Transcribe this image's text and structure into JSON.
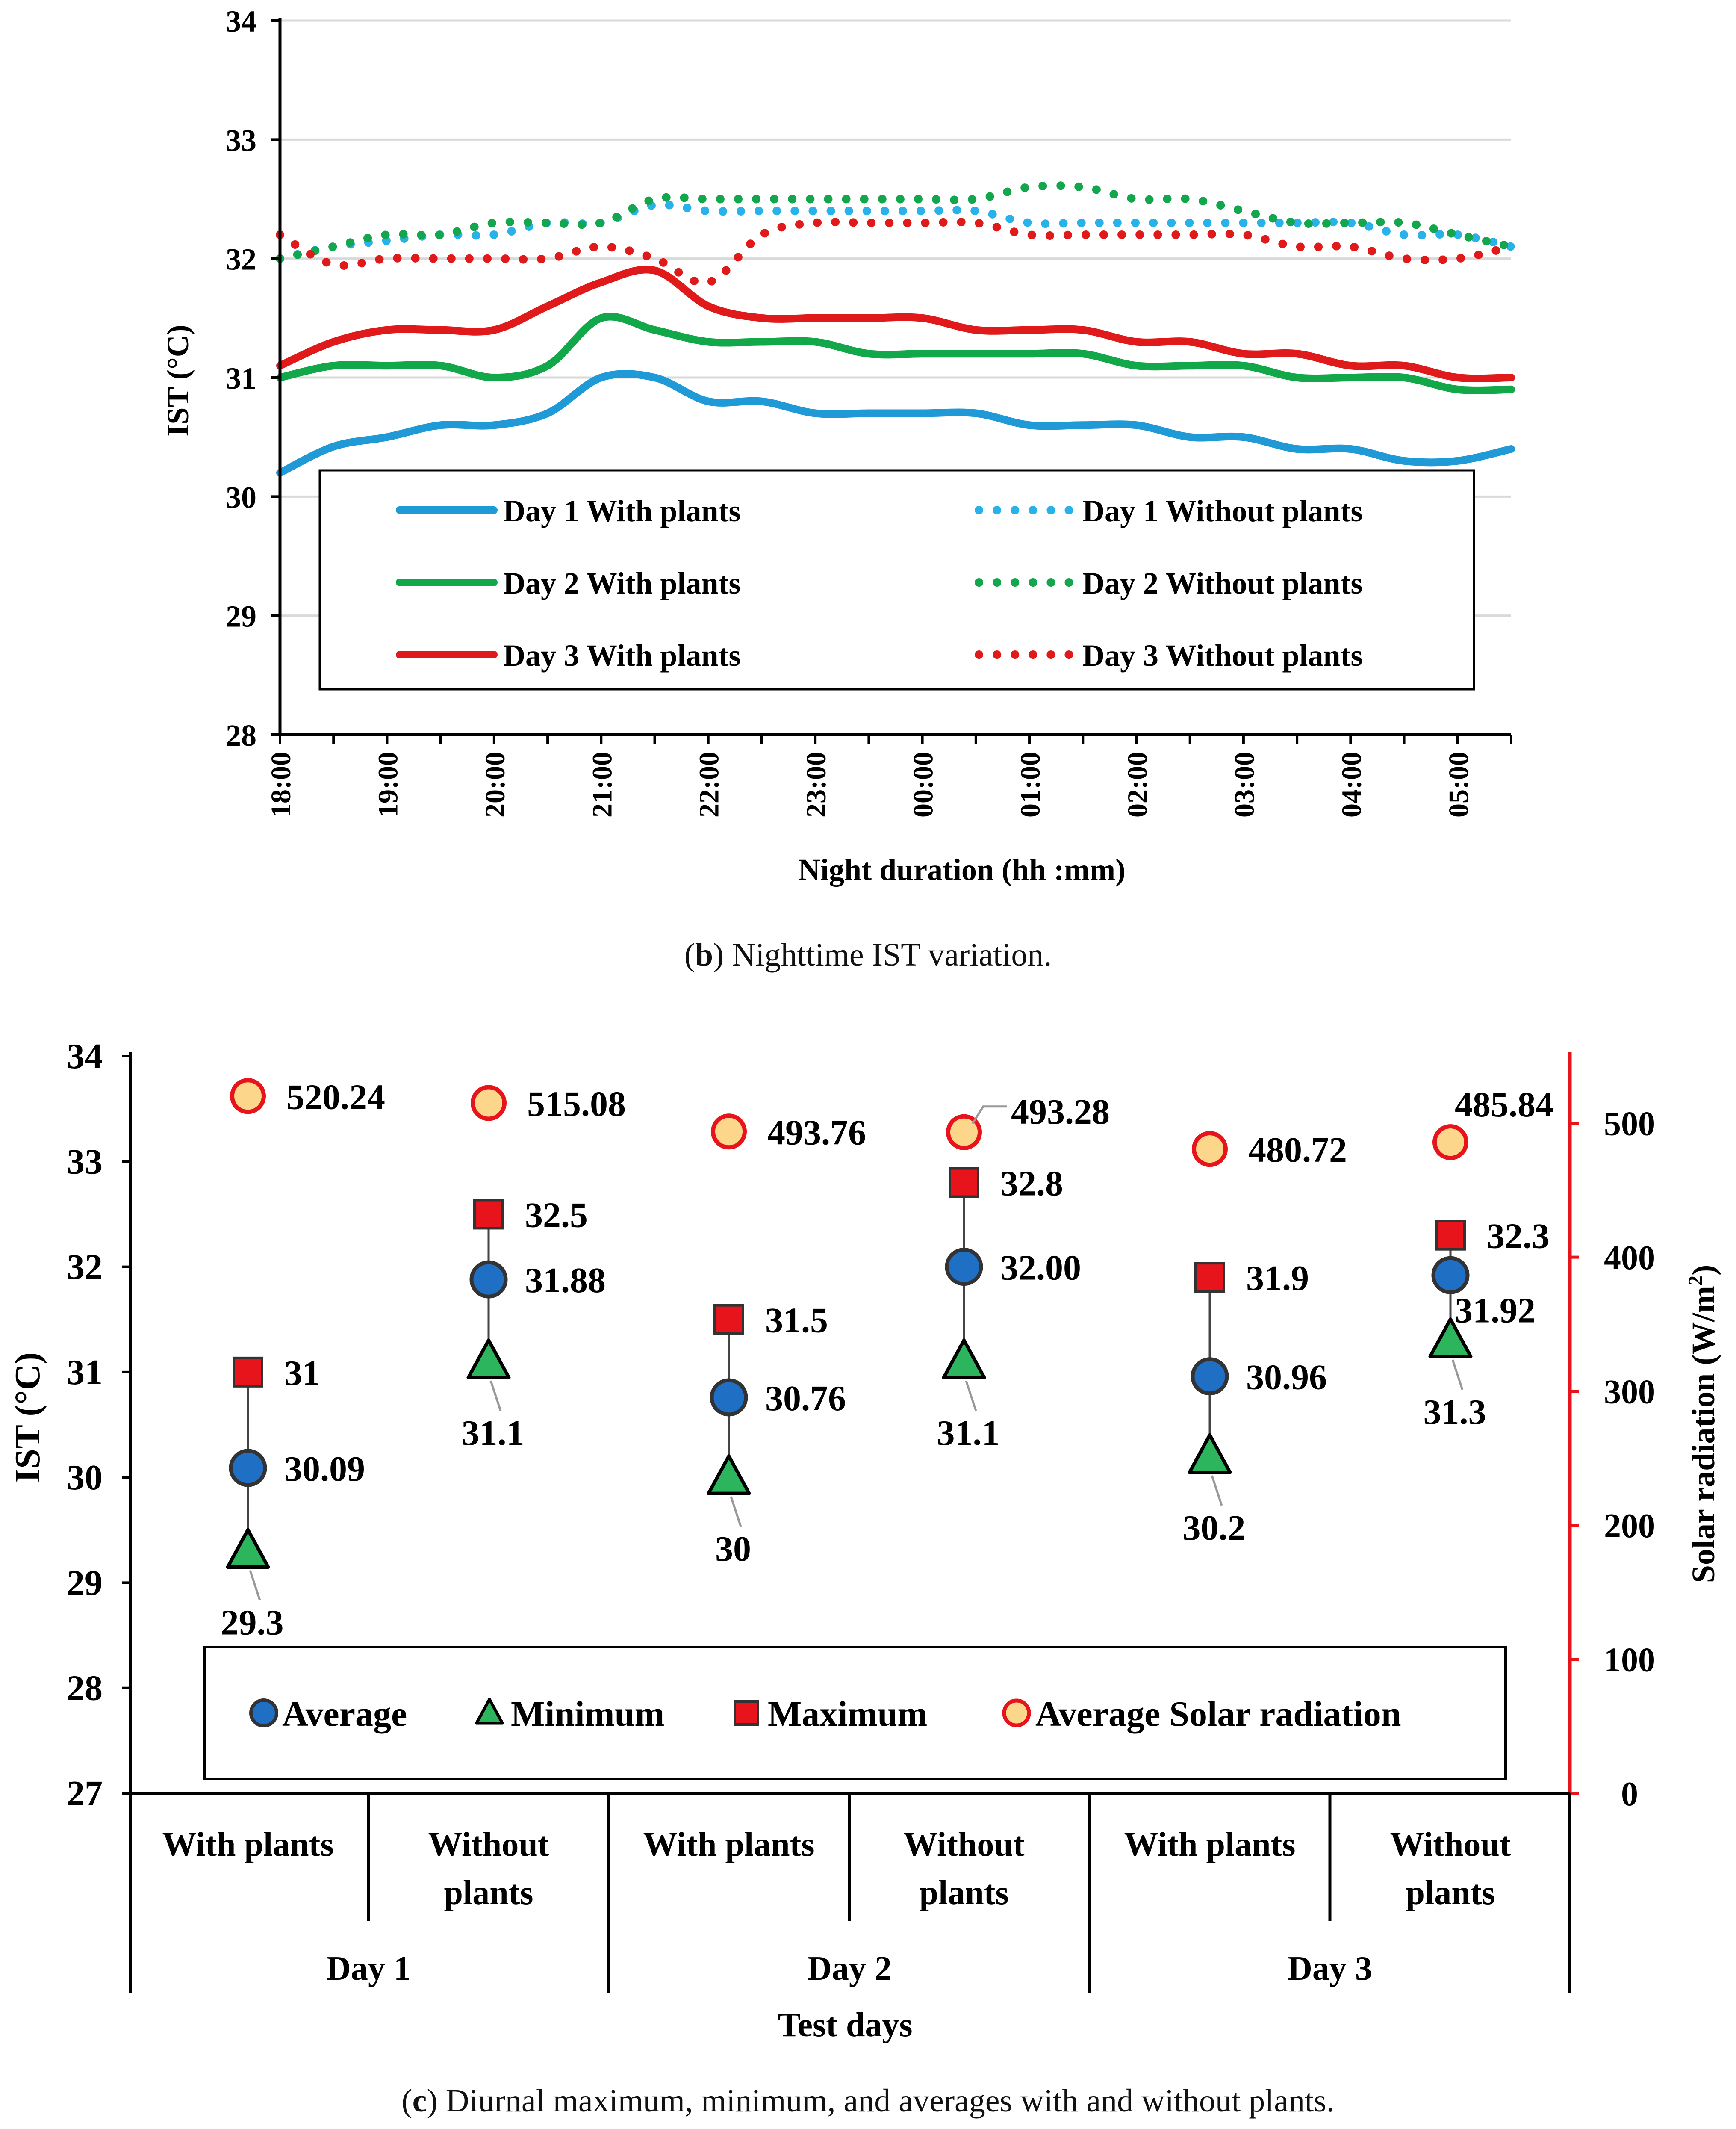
{
  "chart_data": [
    {
      "type": "line",
      "panel": "b",
      "ylabel": "IST (°C)",
      "xlabel": "Night duration (hh :mm)",
      "ylim": [
        28,
        34
      ],
      "yticks": [
        "28",
        "29",
        "30",
        "31",
        "32",
        "33",
        "34"
      ],
      "xticks": [
        "18:00",
        "19:00",
        "20:00",
        "21:00",
        "22:00",
        "23:00",
        "00:00",
        "01:00",
        "02:00",
        "03:00",
        "04:00",
        "05:00"
      ],
      "x_hours_range": [
        0,
        11.5
      ],
      "x_hours": [
        0,
        0.5,
        1,
        1.5,
        2,
        2.5,
        3,
        3.5,
        4,
        4.5,
        5,
        5.5,
        6,
        6.5,
        7,
        7.5,
        8,
        8.5,
        9,
        9.5,
        10,
        10.5,
        11,
        11.5
      ],
      "grid": true,
      "series": [
        {
          "name": "Day 1 With plants",
          "color": "#1f9ad6",
          "style": "solid",
          "values": [
            30.2,
            30.42,
            30.5,
            30.6,
            30.6,
            30.7,
            31.0,
            31.0,
            30.8,
            30.8,
            30.7,
            30.7,
            30.7,
            30.7,
            30.6,
            30.6,
            30.6,
            30.5,
            30.5,
            30.4,
            30.4,
            30.3,
            30.3,
            30.4
          ]
        },
        {
          "name": "Day 2 With plants",
          "color": "#12a84a",
          "style": "solid",
          "values": [
            31.0,
            31.1,
            31.1,
            31.1,
            31.0,
            31.1,
            31.5,
            31.4,
            31.3,
            31.3,
            31.3,
            31.2,
            31.2,
            31.2,
            31.2,
            31.2,
            31.1,
            31.1,
            31.1,
            31.0,
            31.0,
            31.0,
            30.9,
            30.9
          ]
        },
        {
          "name": "Day 3 With plants",
          "color": "#e01a1a",
          "style": "solid",
          "values": [
            31.1,
            31.3,
            31.4,
            31.4,
            31.4,
            31.6,
            31.8,
            31.9,
            31.6,
            31.5,
            31.5,
            31.5,
            31.5,
            31.4,
            31.4,
            31.4,
            31.3,
            31.3,
            31.2,
            31.2,
            31.1,
            31.1,
            31.0,
            31.0
          ]
        },
        {
          "name": "Day 1 Without plants",
          "color": "#29b1ea",
          "style": "dotted",
          "values": [
            32.0,
            32.1,
            32.15,
            32.2,
            32.2,
            32.3,
            32.3,
            32.45,
            32.4,
            32.4,
            32.4,
            32.4,
            32.4,
            32.4,
            32.3,
            32.3,
            32.3,
            32.3,
            32.3,
            32.3,
            32.3,
            32.2,
            32.2,
            32.1
          ]
        },
        {
          "name": "Day 2 Without plants",
          "color": "#14a64c",
          "style": "dotted",
          "values": [
            32.0,
            32.1,
            32.2,
            32.2,
            32.3,
            32.3,
            32.3,
            32.5,
            32.5,
            32.5,
            32.5,
            32.5,
            32.5,
            32.5,
            32.6,
            32.6,
            32.5,
            32.5,
            32.4,
            32.3,
            32.3,
            32.3,
            32.2,
            32.1
          ]
        },
        {
          "name": "Day 3 Without plants",
          "color": "#e01a1a",
          "style": "dotted",
          "values": [
            32.2,
            31.95,
            32.0,
            32.0,
            32.0,
            32.0,
            32.1,
            32.0,
            31.8,
            32.2,
            32.3,
            32.3,
            32.3,
            32.3,
            32.2,
            32.2,
            32.2,
            32.2,
            32.2,
            32.1,
            32.1,
            32.0,
            32.0,
            32.1
          ]
        }
      ],
      "legend": {
        "position": "lower-center",
        "entries": [
          "Day 1 With plants",
          "Day 1 Without plants",
          "Day 2 With plants",
          "Day 2 Without plants",
          "Day 3 With plants",
          "Day 3 Without plants"
        ]
      }
    },
    {
      "type": "scatter",
      "panel": "c",
      "ylabel": "IST (°C)",
      "ylabel_right": "Solar radiation (W/m²)",
      "ylabel_right_base": "Solar radiation (W/m",
      "ylabel_right_sup": "2",
      "ylabel_right_tail": ")",
      "xlabel": "Test days",
      "ylim": [
        27,
        34
      ],
      "yticks": [
        "27",
        "28",
        "29",
        "30",
        "31",
        "32",
        "33",
        "34"
      ],
      "ylim_right": [
        0,
        550
      ],
      "yticks_right": [
        "0",
        "100",
        "200",
        "300",
        "400",
        "500"
      ],
      "categories": [
        "With plants",
        "Without plants",
        "With plants",
        "Without plants",
        "With plants",
        "Without plants"
      ],
      "category_lines": [
        [
          "With plants"
        ],
        [
          "Without",
          "plants"
        ],
        [
          "With plants"
        ],
        [
          "Without",
          "plants"
        ],
        [
          "With plants"
        ],
        [
          "Without",
          "plants"
        ]
      ],
      "groups": [
        "Day 1",
        "Day 2",
        "Day 3"
      ],
      "series": [
        {
          "name": "Average",
          "marker": "circle",
          "color": "#1f6fc5",
          "values": [
            30.09,
            31.88,
            30.76,
            32.0,
            30.96,
            31.92
          ],
          "labels": [
            "30.09",
            "31.88",
            "30.76",
            "32.00",
            "30.96",
            "31.92"
          ]
        },
        {
          "name": "Minimum",
          "marker": "triangle",
          "color": "#2db55d",
          "values": [
            29.3,
            31.1,
            30.0,
            31.1,
            30.2,
            31.3
          ],
          "labels": [
            "29.3",
            "31.1",
            "30",
            "31.1",
            "30.2",
            "31.3"
          ]
        },
        {
          "name": "Maximum",
          "marker": "square",
          "color": "#e8141c",
          "values": [
            31.0,
            32.5,
            31.5,
            32.8,
            31.9,
            32.3
          ],
          "labels": [
            "31",
            "32.5",
            "31.5",
            "32.8",
            "31.9",
            "32.3"
          ]
        },
        {
          "name": "Average Solar radiation",
          "marker": "circle",
          "color": "#fcd68a",
          "edge": "#e8141c",
          "axis": "right",
          "values": [
            520.24,
            515.08,
            493.76,
            493.28,
            480.72,
            485.84
          ],
          "labels": [
            "520.24",
            "515.08",
            "493.76",
            "493.28",
            "480.72",
            "485.84"
          ]
        }
      ],
      "legend": {
        "position": "lower-center",
        "entries": [
          "Average",
          "Minimum",
          "Maximum",
          "Average Solar radiation"
        ]
      }
    }
  ],
  "captions": {
    "b": {
      "letter": "b",
      "text": " Nighttime IST variation."
    },
    "c": {
      "letter": "c",
      "text": " Diurnal maximum, minimum, and averages with and without plants."
    }
  }
}
